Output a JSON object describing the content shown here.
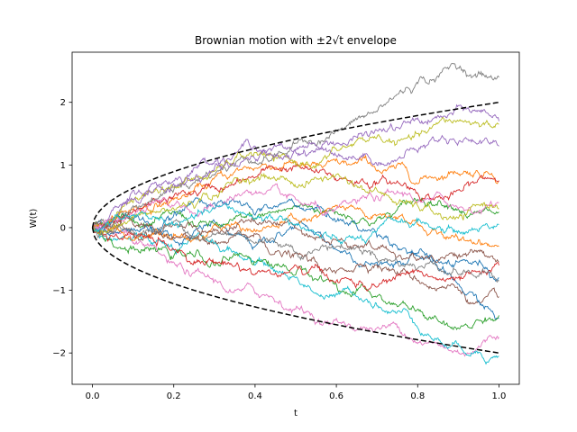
{
  "chart_data": {
    "type": "line",
    "title": "Brownian motion with ±2√t envelope",
    "xlabel": "t",
    "ylabel": "W(t)",
    "xlim": [
      -0.05,
      1.05
    ],
    "ylim": [
      -2.5,
      2.8
    ],
    "xticks": [
      0.0,
      0.2,
      0.4,
      0.6,
      0.8,
      1.0
    ],
    "xtick_labels": [
      "0.0",
      "0.2",
      "0.4",
      "0.6",
      "0.8",
      "1.0"
    ],
    "yticks": [
      -2,
      -1,
      0,
      1,
      2
    ],
    "ytick_labels": [
      "−2",
      "−1",
      "0",
      "1",
      "2"
    ],
    "grid": false,
    "legend": "none",
    "envelope": {
      "upper": "2*sqrt(t)",
      "lower": "-2*sqrt(t)",
      "style": "dashed",
      "color": "#000000"
    },
    "series": [
      {
        "color": "#1f77b4",
        "t": [
          0,
          0.1,
          0.2,
          0.3,
          0.4,
          0.5,
          0.6,
          0.7,
          0.8,
          0.9,
          1.0
        ],
        "values": [
          0,
          0.15,
          -0.2,
          0.1,
          -0.3,
          0.05,
          -0.35,
          -0.55,
          -0.4,
          -0.55,
          -0.8
        ]
      },
      {
        "color": "#ff7f0e",
        "t": [
          0,
          0.1,
          0.2,
          0.3,
          0.4,
          0.5,
          0.6,
          0.7,
          0.8,
          0.9,
          1.0
        ],
        "values": [
          0,
          0.3,
          0.45,
          0.8,
          0.95,
          1.05,
          1.1,
          0.9,
          0.7,
          0.85,
          0.75
        ]
      },
      {
        "color": "#2ca02c",
        "t": [
          0,
          0.1,
          0.2,
          0.3,
          0.4,
          0.5,
          0.6,
          0.7,
          0.8,
          0.9,
          1.0
        ],
        "values": [
          0,
          0.1,
          0.25,
          0.05,
          0.15,
          0.35,
          0.25,
          0.15,
          0.45,
          0.3,
          0.25
        ]
      },
      {
        "color": "#d62728",
        "t": [
          0,
          0.1,
          0.2,
          0.3,
          0.4,
          0.5,
          0.6,
          0.7,
          0.8,
          0.9,
          1.0
        ],
        "values": [
          0,
          0.25,
          0.5,
          0.65,
          0.8,
          1.0,
          0.75,
          0.7,
          0.55,
          0.6,
          0.75
        ]
      },
      {
        "color": "#9467bd",
        "t": [
          0,
          0.1,
          0.2,
          0.3,
          0.4,
          0.5,
          0.6,
          0.7,
          0.8,
          0.9,
          1.0
        ],
        "values": [
          0,
          0.6,
          0.75,
          1.05,
          1.3,
          1.2,
          1.35,
          1.55,
          1.75,
          1.95,
          1.7
        ]
      },
      {
        "color": "#8c564b",
        "t": [
          0,
          0.1,
          0.2,
          0.3,
          0.4,
          0.5,
          0.6,
          0.7,
          0.8,
          0.9,
          1.0
        ],
        "values": [
          0,
          -0.1,
          0.05,
          -0.25,
          -0.1,
          -0.4,
          -0.7,
          -0.6,
          -0.85,
          -1.0,
          -1.1
        ]
      },
      {
        "color": "#e377c2",
        "t": [
          0,
          0.1,
          0.2,
          0.3,
          0.4,
          0.5,
          0.6,
          0.7,
          0.8,
          0.9,
          1.0
        ],
        "values": [
          0,
          -0.25,
          -0.55,
          -0.85,
          -1.05,
          -1.3,
          -1.45,
          -1.6,
          -1.85,
          -2.0,
          -1.75
        ]
      },
      {
        "color": "#7f7f7f",
        "t": [
          0,
          0.1,
          0.2,
          0.3,
          0.4,
          0.5,
          0.6,
          0.7,
          0.8,
          0.9,
          1.0
        ],
        "values": [
          0,
          0.35,
          0.6,
          0.85,
          1.05,
          1.35,
          1.55,
          1.85,
          2.3,
          2.55,
          2.4
        ]
      },
      {
        "color": "#bcbd22",
        "t": [
          0,
          0.1,
          0.2,
          0.3,
          0.4,
          0.5,
          0.6,
          0.7,
          0.8,
          0.9,
          1.0
        ],
        "values": [
          0,
          0.4,
          0.65,
          0.9,
          1.2,
          1.0,
          1.25,
          1.45,
          1.5,
          1.7,
          1.65
        ]
      },
      {
        "color": "#17becf",
        "t": [
          0,
          0.1,
          0.2,
          0.3,
          0.4,
          0.5,
          0.6,
          0.7,
          0.8,
          0.9,
          1.0
        ],
        "values": [
          0,
          -0.15,
          -0.35,
          -0.25,
          -0.6,
          -0.8,
          -1.05,
          -1.25,
          -1.6,
          -1.85,
          -2.05
        ]
      },
      {
        "color": "#1f77b4",
        "t": [
          0,
          0.1,
          0.2,
          0.3,
          0.4,
          0.5,
          0.6,
          0.7,
          0.8,
          0.9,
          1.0
        ],
        "values": [
          0,
          -0.05,
          0.2,
          0.4,
          0.2,
          0.35,
          0.1,
          -0.15,
          -0.45,
          -0.9,
          -1.45
        ]
      },
      {
        "color": "#ff7f0e",
        "t": [
          0,
          0.1,
          0.2,
          0.3,
          0.4,
          0.5,
          0.6,
          0.7,
          0.8,
          0.9,
          1.0
        ],
        "values": [
          0,
          -0.2,
          -0.1,
          0.05,
          -0.05,
          0.15,
          0.35,
          0.2,
          0.05,
          -0.2,
          -0.3
        ]
      },
      {
        "color": "#2ca02c",
        "t": [
          0,
          0.1,
          0.2,
          0.3,
          0.4,
          0.5,
          0.6,
          0.7,
          0.8,
          0.9,
          1.0
        ],
        "values": [
          0,
          -0.3,
          -0.45,
          -0.6,
          -0.55,
          -0.75,
          -0.9,
          -1.1,
          -1.3,
          -1.6,
          -1.4
        ]
      },
      {
        "color": "#d62728",
        "t": [
          0,
          0.1,
          0.2,
          0.3,
          0.4,
          0.5,
          0.6,
          0.7,
          0.8,
          0.9,
          1.0
        ],
        "values": [
          0,
          -0.1,
          -0.35,
          -0.55,
          -0.75,
          -0.6,
          -0.85,
          -0.95,
          -0.7,
          -0.8,
          -0.6
        ]
      },
      {
        "color": "#9467bd",
        "t": [
          0,
          0.1,
          0.2,
          0.3,
          0.4,
          0.5,
          0.6,
          0.7,
          0.8,
          0.9,
          1.0
        ],
        "values": [
          0,
          0.45,
          0.7,
          0.95,
          1.1,
          1.25,
          1.15,
          1.0,
          1.2,
          1.35,
          1.3
        ]
      },
      {
        "color": "#8c564b",
        "t": [
          0,
          0.1,
          0.2,
          0.3,
          0.4,
          0.5,
          0.6,
          0.7,
          0.8,
          0.9,
          1.0
        ],
        "values": [
          0,
          0.05,
          -0.15,
          -0.05,
          0.1,
          0.0,
          -0.2,
          -0.35,
          -0.5,
          -0.45,
          -0.55
        ]
      },
      {
        "color": "#e377c2",
        "t": [
          0,
          0.1,
          0.2,
          0.3,
          0.4,
          0.5,
          0.6,
          0.7,
          0.8,
          0.9,
          1.0
        ],
        "values": [
          0,
          0.2,
          0.35,
          0.3,
          0.55,
          0.45,
          0.3,
          0.5,
          0.4,
          0.3,
          0.4
        ]
      },
      {
        "color": "#7f7f7f",
        "t": [
          0,
          0.1,
          0.2,
          0.3,
          0.4,
          0.5,
          0.6,
          0.7,
          0.8,
          0.9,
          1.0
        ],
        "values": [
          0,
          -0.05,
          0.1,
          -0.1,
          -0.25,
          -0.4,
          -0.3,
          -0.5,
          -0.65,
          -0.75,
          -0.85
        ]
      },
      {
        "color": "#bcbd22",
        "t": [
          0,
          0.1,
          0.2,
          0.3,
          0.4,
          0.5,
          0.6,
          0.7,
          0.8,
          0.9,
          1.0
        ],
        "values": [
          0,
          0.15,
          0.3,
          0.5,
          0.75,
          0.65,
          0.85,
          0.6,
          0.35,
          0.15,
          0.3
        ]
      },
      {
        "color": "#17becf",
        "t": [
          0,
          0.1,
          0.2,
          0.3,
          0.4,
          0.5,
          0.6,
          0.7,
          0.8,
          0.9,
          1.0
        ],
        "values": [
          0,
          0.2,
          0.05,
          0.3,
          0.15,
          0.05,
          -0.15,
          -0.05,
          0.1,
          -0.05,
          0.05
        ]
      }
    ]
  }
}
